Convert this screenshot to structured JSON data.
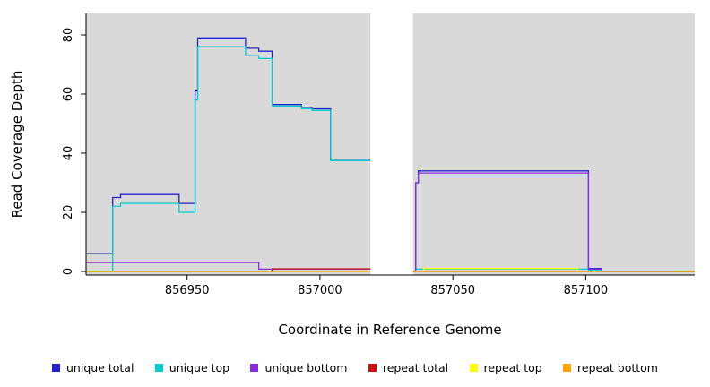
{
  "chart_data": {
    "type": "line",
    "subtype": "step",
    "title": "",
    "xlabel": "Coordinate in Reference Genome",
    "ylabel": "Read Coverage Depth",
    "x_ticks": [
      856950,
      857000,
      857050,
      857100
    ],
    "y_ticks": [
      0,
      20,
      40,
      60,
      80
    ],
    "xlim": [
      856912,
      857141
    ],
    "ylim": [
      0,
      88
    ],
    "grid": false,
    "plot_bg": "#d9d9d9",
    "gap_region": {
      "x_start": 857019,
      "x_end": 857035,
      "color": "#ffffff"
    },
    "legend_position": "bottom",
    "series": [
      {
        "name": "unique total",
        "color": "#2222cc",
        "segments": [
          [
            [
              856912,
              6
            ],
            [
              856922,
              25
            ],
            [
              856925,
              26
            ],
            [
              856946,
              26
            ],
            [
              856947,
              23
            ],
            [
              856952,
              23
            ],
            [
              856953,
              61
            ],
            [
              856954,
              79
            ],
            [
              856971,
              79
            ],
            [
              856972,
              75.5
            ],
            [
              856976,
              75.5
            ],
            [
              856977,
              74.5
            ],
            [
              856981,
              74.5
            ],
            [
              856982,
              56.5
            ],
            [
              856992,
              56.5
            ],
            [
              856993,
              55.5
            ],
            [
              856996,
              55.5
            ],
            [
              856997,
              55
            ],
            [
              857003,
              55
            ],
            [
              857004,
              38
            ],
            [
              857019,
              38
            ]
          ],
          [
            [
              857035,
              0
            ],
            [
              857036,
              30
            ],
            [
              857037,
              34
            ],
            [
              857100,
              34
            ],
            [
              857101,
              1
            ],
            [
              857105,
              1
            ],
            [
              857106,
              0
            ],
            [
              857141,
              0
            ]
          ]
        ]
      },
      {
        "name": "unique top",
        "color": "#00cdcd",
        "segments": [
          [
            [
              856912,
              0
            ],
            [
              856922,
              22
            ],
            [
              856925,
              23
            ],
            [
              856946,
              23
            ],
            [
              856947,
              20
            ],
            [
              856952,
              20
            ],
            [
              856953,
              58
            ],
            [
              856954,
              76
            ],
            [
              856971,
              76
            ],
            [
              856972,
              73
            ],
            [
              856976,
              73
            ],
            [
              856977,
              72
            ],
            [
              856981,
              72
            ],
            [
              856982,
              56
            ],
            [
              856992,
              56
            ],
            [
              856993,
              55
            ],
            [
              856996,
              55
            ],
            [
              856997,
              54.5
            ],
            [
              857003,
              54.5
            ],
            [
              857004,
              37.5
            ],
            [
              857019,
              37.5
            ]
          ],
          [
            [
              857035,
              0
            ],
            [
              857036,
              0.8
            ],
            [
              857100,
              0.8
            ],
            [
              857101,
              0.5
            ],
            [
              857105,
              0.5
            ],
            [
              857106,
              0
            ],
            [
              857141,
              0
            ]
          ]
        ]
      },
      {
        "name": "unique bottom",
        "color": "#8a2be2",
        "segments": [
          [
            [
              856912,
              3
            ],
            [
              856976,
              3
            ],
            [
              856977,
              0.8
            ],
            [
              857019,
              0.8
            ]
          ],
          [
            [
              857035,
              0
            ],
            [
              857036,
              30
            ],
            [
              857037,
              33.3
            ],
            [
              857100,
              33.3
            ],
            [
              857101,
              0.8
            ],
            [
              857105,
              0.8
            ],
            [
              857106,
              0
            ],
            [
              857141,
              0
            ]
          ]
        ]
      },
      {
        "name": "repeat total",
        "color": "#cc1111",
        "segments": [
          [
            [
              856912,
              0
            ],
            [
              856981,
              0
            ],
            [
              856982,
              0.9
            ],
            [
              857019,
              0.9
            ]
          ],
          [
            [
              857035,
              0
            ],
            [
              857141,
              0
            ]
          ]
        ]
      },
      {
        "name": "repeat top",
        "color": "#ffff00",
        "segments": [
          [
            [
              856912,
              0
            ],
            [
              857019,
              0
            ]
          ],
          [
            [
              857035,
              0
            ],
            [
              857039,
              1
            ],
            [
              857096,
              1
            ],
            [
              857097,
              0
            ],
            [
              857141,
              0
            ]
          ]
        ]
      },
      {
        "name": "repeat bottom",
        "color": "#ffa500",
        "segments": [
          [
            [
              856912,
              0
            ],
            [
              857019,
              0
            ]
          ],
          [
            [
              857035,
              0
            ],
            [
              857141,
              0
            ]
          ]
        ]
      }
    ],
    "legend": [
      {
        "label": "unique total",
        "color": "#2222cc"
      },
      {
        "label": "unique top",
        "color": "#00cdcd"
      },
      {
        "label": "unique bottom",
        "color": "#8a2be2"
      },
      {
        "label": "repeat total",
        "color": "#cc1111"
      },
      {
        "label": "repeat top",
        "color": "#ffff00"
      },
      {
        "label": "repeat bottom",
        "color": "#ffa500"
      }
    ]
  }
}
